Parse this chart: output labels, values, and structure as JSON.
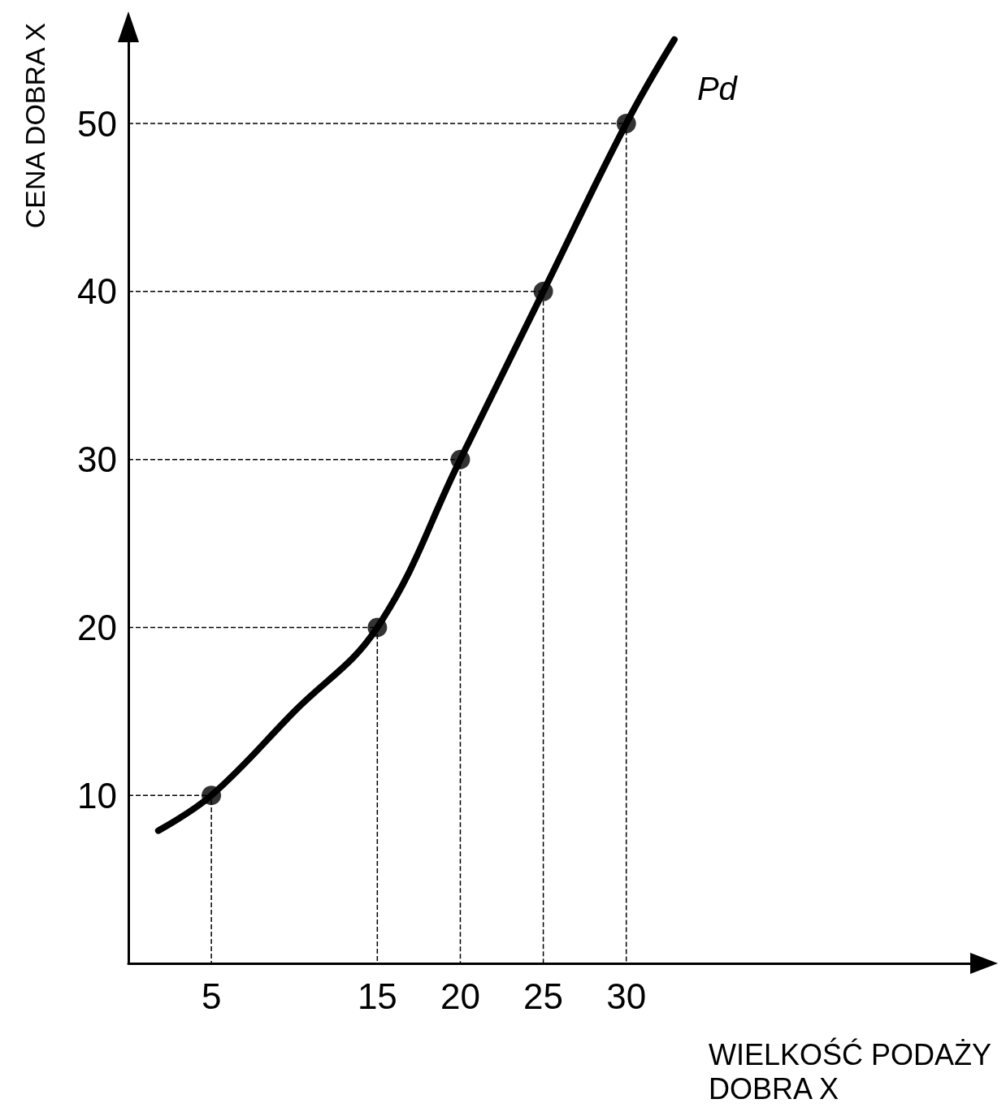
{
  "chart_data": {
    "type": "line",
    "xlabel": "WIELKOŚĆ PODAŻY\nDOBRA X",
    "ylabel": "CENA DOBRA X",
    "xlim": [
      0,
      52
    ],
    "ylim": [
      0,
      56
    ],
    "xticks": [
      5,
      15,
      20,
      25,
      30
    ],
    "yticks": [
      10,
      20,
      30,
      40,
      50
    ],
    "legend": false,
    "series": [
      {
        "name": "Pd",
        "color": "#000000",
        "marker": "none",
        "line_style": "solid",
        "x": [
          1.8,
          5,
          10,
          15,
          20,
          25,
          30,
          32.9
        ],
        "values": [
          7.9,
          10,
          15,
          20,
          30,
          40,
          50,
          55
        ]
      },
      {
        "color": "#000000",
        "line_style": "dashed",
        "marker": "none",
        "x": [
          0,
          5,
          5
        ],
        "values": [
          10,
          10,
          0
        ]
      },
      {
        "color": "#000000",
        "line_style": "dashed",
        "marker": "none",
        "x": [
          0,
          15,
          15
        ],
        "values": [
          20,
          20,
          0
        ]
      },
      {
        "color": "#000000",
        "line_style": "dashed",
        "marker": "none",
        "x": [
          0,
          20,
          20
        ],
        "values": [
          30,
          30,
          0
        ]
      },
      {
        "color": "#000000",
        "line_style": "dashed",
        "marker": "none",
        "x": [
          0,
          25,
          25
        ],
        "values": [
          40,
          40,
          0
        ]
      },
      {
        "color": "#000000",
        "line_style": "dashed",
        "marker": "none",
        "x": [
          0,
          30,
          30
        ],
        "values": [
          50,
          50,
          0
        ]
      },
      {
        "color": "#000000",
        "type": "scatter",
        "marker": "circle",
        "x": [
          5,
          15,
          20,
          25,
          30
        ],
        "values": [
          10,
          20,
          30,
          40,
          50
        ]
      }
    ]
  }
}
